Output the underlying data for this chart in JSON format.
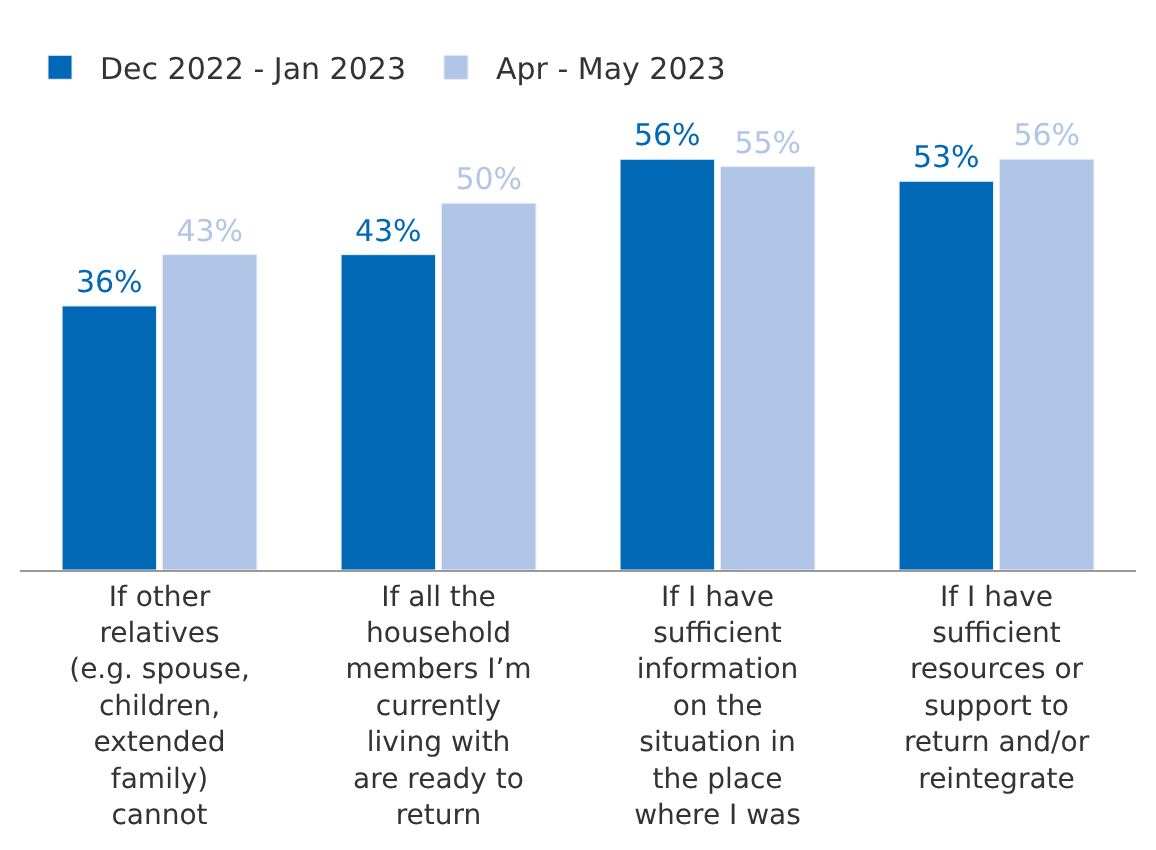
{
  "chart_data": {
    "type": "bar",
    "categories": [
      "If other relatives (e.g. spouse, children, extended family) cannot",
      "If all the household members I’m currently living with are ready to return",
      "If I have sufficient information on the situation in the place where I was",
      "If I have sufficient resources or support to return and/or reintegrate"
    ],
    "series": [
      {
        "name": "Dec 2022 - Jan 2023",
        "color": "#0068b5",
        "values": [
          36,
          43,
          56,
          53
        ],
        "value_labels": [
          "36%",
          "43%",
          "56%",
          "53%"
        ]
      },
      {
        "name": "Apr - May 2023",
        "color": "#b1c5e7",
        "values": [
          43,
          50,
          55,
          56
        ],
        "value_labels": [
          "43%",
          "50%",
          "55%",
          "56%"
        ]
      }
    ],
    "legend": "top left"
  }
}
